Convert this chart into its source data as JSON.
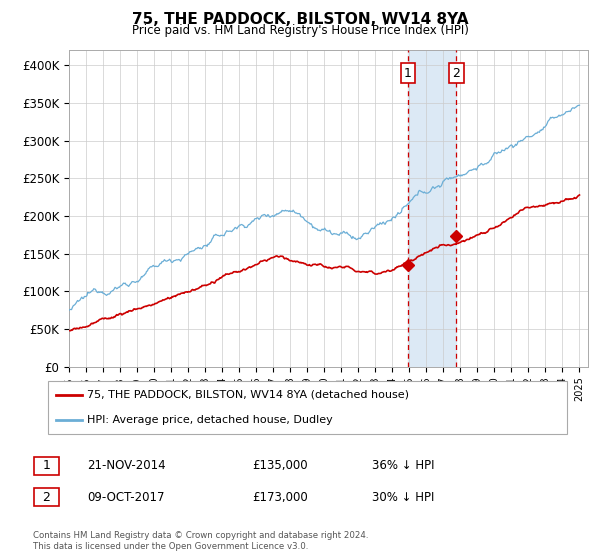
{
  "title": "75, THE PADDOCK, BILSTON, WV14 8YA",
  "subtitle": "Price paid vs. HM Land Registry's House Price Index (HPI)",
  "ylim": [
    0,
    420000
  ],
  "yticks": [
    0,
    50000,
    100000,
    150000,
    200000,
    250000,
    300000,
    350000,
    400000
  ],
  "ytick_labels": [
    "£0",
    "£50K",
    "£100K",
    "£150K",
    "£200K",
    "£250K",
    "£300K",
    "£350K",
    "£400K"
  ],
  "hpi_color": "#6baed6",
  "price_color": "#cc0000",
  "marker_color": "#cc0000",
  "event1_x": 2014.9,
  "event2_x": 2017.77,
  "event1_y_price": 135000,
  "event2_y_price": 173000,
  "shade_color": "#dce9f5",
  "vline_color": "#cc0000",
  "legend_line1": "75, THE PADDOCK, BILSTON, WV14 8YA (detached house)",
  "legend_line2": "HPI: Average price, detached house, Dudley",
  "table_row1": [
    "1",
    "21-NOV-2014",
    "£135,000",
    "36% ↓ HPI"
  ],
  "table_row2": [
    "2",
    "09-OCT-2017",
    "£173,000",
    "30% ↓ HPI"
  ],
  "footer1": "Contains HM Land Registry data © Crown copyright and database right 2024.",
  "footer2": "This data is licensed under the Open Government Licence v3.0.",
  "background_color": "#ffffff",
  "grid_color": "#cccccc",
  "xlim_start": 1995,
  "xlim_end": 2025.5
}
